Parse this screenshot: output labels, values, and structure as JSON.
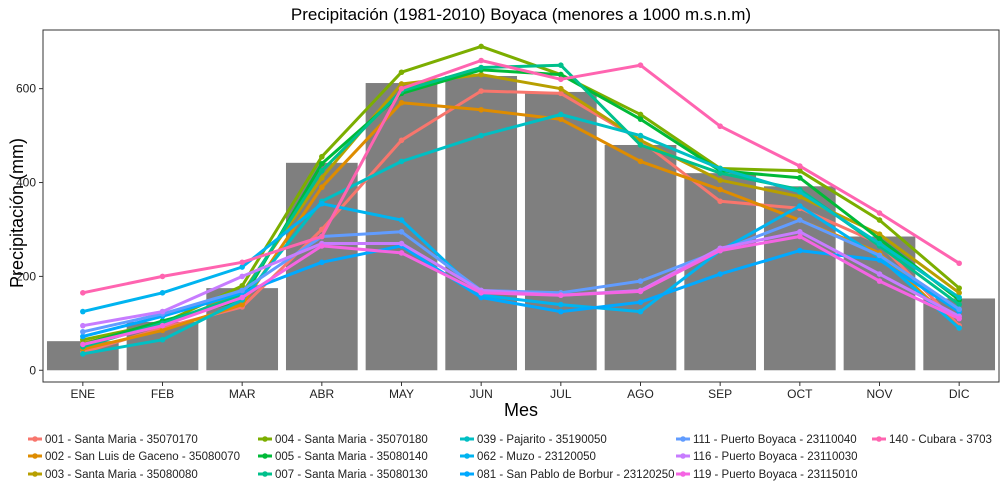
{
  "chart_data": {
    "type": "bar+line",
    "title": "Precipitación (1981-2010) Boyaca (menores a 1000 m.s.n.m)",
    "xlabel": "Mes",
    "ylabel": "Precipitación (mm)",
    "categories": [
      "ENE",
      "FEB",
      "MAR",
      "ABR",
      "MAY",
      "JUN",
      "JUL",
      "AGO",
      "SEP",
      "OCT",
      "NOV",
      "DIC"
    ],
    "ylim": [
      -25,
      725
    ],
    "yticks": [
      0,
      200,
      400,
      600
    ],
    "grid": false,
    "legend_position": "bottom",
    "bar_color": "#7f7f7f",
    "bars": [
      62,
      103,
      175,
      442,
      612,
      627,
      593,
      480,
      420,
      392,
      285,
      153
    ],
    "series": [
      {
        "name": "001 - Santa Maria - 35070170",
        "color": "#f8766d",
        "values": [
          38,
          90,
          135,
          300,
          490,
          595,
          590,
          490,
          360,
          345,
          270,
          95
        ]
      },
      {
        "name": "002 - San Luis de Gaceno - 35080070",
        "color": "#de8c00",
        "values": [
          45,
          85,
          140,
          390,
          570,
          555,
          535,
          445,
          385,
          320,
          250,
          90
        ]
      },
      {
        "name": "003 - Santa Maria - 35080080",
        "color": "#b79f00",
        "values": [
          58,
          95,
          165,
          410,
          610,
          630,
          600,
          490,
          405,
          370,
          290,
          165
        ]
      },
      {
        "name": "004 - Santa Maria - 35070180",
        "color": "#7cae00",
        "values": [
          65,
          100,
          180,
          455,
          635,
          690,
          630,
          545,
          430,
          425,
          320,
          175
        ]
      },
      {
        "name": "005 - Santa Maria - 35080140",
        "color": "#00ba38",
        "values": [
          55,
          105,
          150,
          440,
          590,
          640,
          630,
          535,
          425,
          410,
          280,
          150
        ]
      },
      {
        "name": "007 - Santa Maria - 35080130",
        "color": "#00c08b",
        "values": [
          50,
          100,
          160,
          425,
          595,
          645,
          650,
          480,
          420,
          385,
          265,
          140
        ]
      },
      {
        "name": "039 - Pajarito - 35190050",
        "color": "#00bfc4",
        "values": [
          35,
          65,
          150,
          360,
          445,
          500,
          545,
          500,
          430,
          380,
          270,
          155
        ]
      },
      {
        "name": "062 - Muzo - 23120050",
        "color": "#00b4f0",
        "values": [
          125,
          165,
          220,
          355,
          320,
          160,
          140,
          125,
          255,
          350,
          240,
          90
        ]
      },
      {
        "name": "081 - San Pablo de Borbur - 23120250",
        "color": "#00a9ff",
        "values": [
          72,
          115,
          165,
          230,
          265,
          155,
          125,
          145,
          205,
          255,
          235,
          125
        ]
      },
      {
        "name": "111 - Puerto Boyaca - 23110040",
        "color": "#619cff",
        "values": [
          82,
          120,
          170,
          285,
          295,
          170,
          165,
          190,
          255,
          320,
          245,
          130
        ]
      },
      {
        "name": "116 - Puerto Boyaca - 23110030",
        "color": "#c77cff",
        "values": [
          95,
          125,
          200,
          270,
          270,
          170,
          160,
          170,
          260,
          295,
          205,
          115
        ]
      },
      {
        "name": "119 - Puerto Boyaca - 23115010",
        "color": "#f564e3",
        "values": [
          55,
          95,
          155,
          265,
          250,
          165,
          160,
          168,
          255,
          285,
          190,
          110
        ]
      },
      {
        "name": "140 - Cubara - 3703",
        "color": "#ff64b0",
        "values": [
          165,
          200,
          230,
          285,
          600,
          660,
          620,
          650,
          520,
          435,
          335,
          228
        ]
      }
    ]
  }
}
